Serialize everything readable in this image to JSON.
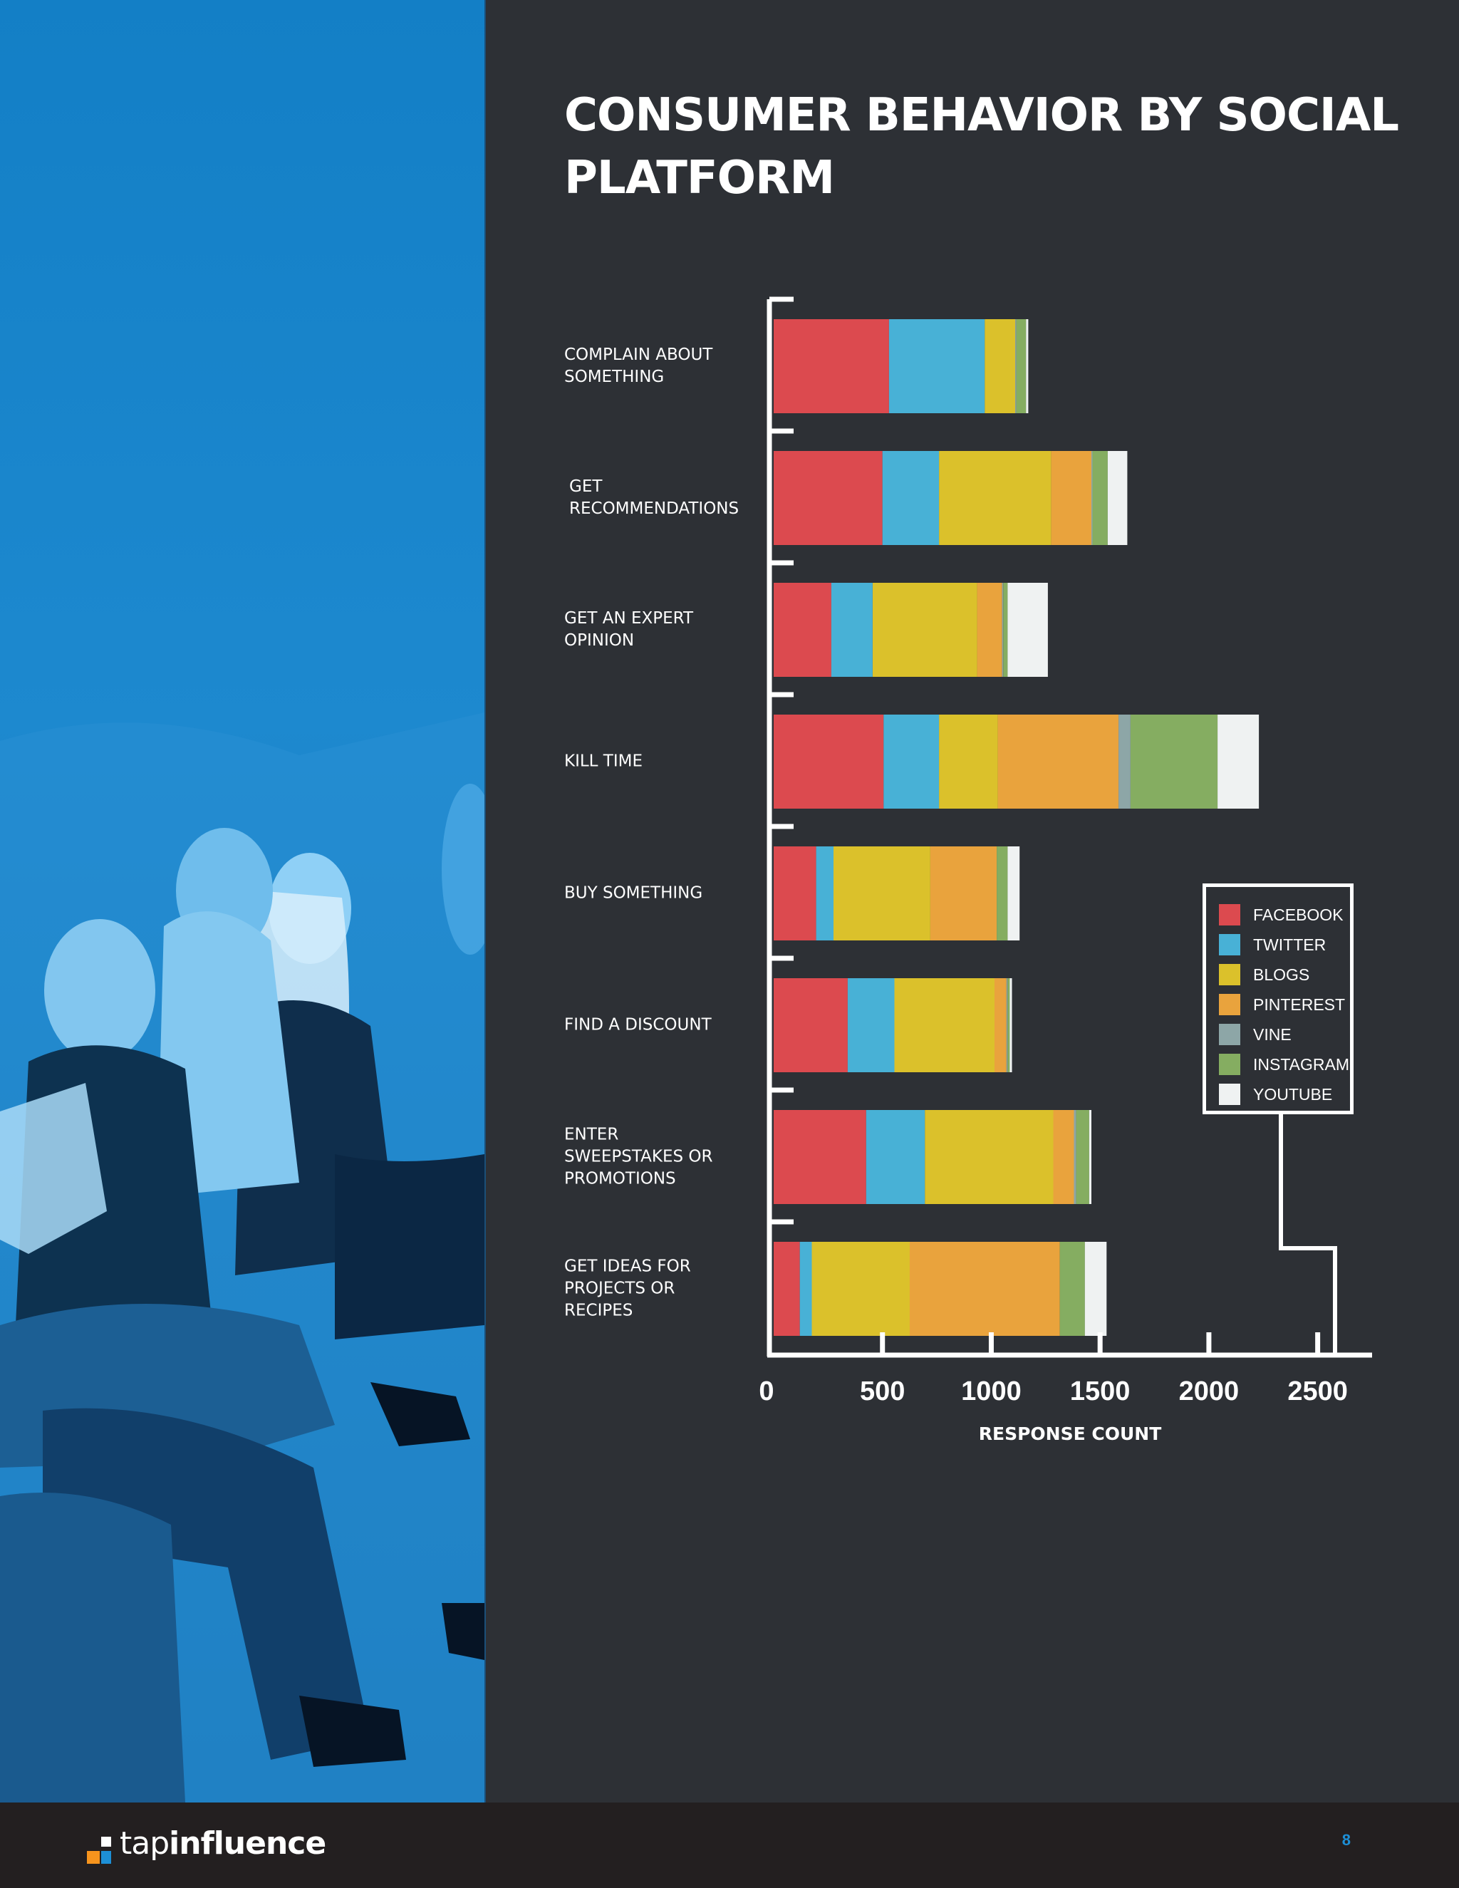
{
  "title": "CONSUMER BEHAVIOR BY SOCIAL PLATFORM",
  "brand": {
    "name_light": "tap",
    "name_bold": "influence"
  },
  "page_number": "8",
  "colors": {
    "panel_blue": "#1a85cc",
    "background": "#2d3035",
    "footer": "#231f20",
    "page_number": "#1d8fd6"
  },
  "chart_data": {
    "type": "bar",
    "orientation": "horizontal",
    "stacked": true,
    "title": "CONSUMER BEHAVIOR BY SOCIAL PLATFORM",
    "xlabel": "RESPONSE COUNT",
    "ylabel": "",
    "xlim": [
      0,
      2750
    ],
    "xticks": [
      "0",
      "500",
      "1000",
      "1500",
      "2000",
      "2500"
    ],
    "xtick_values": [
      0,
      500,
      1000,
      1500,
      2000,
      2500
    ],
    "legend_position": "right",
    "grid": false,
    "categories": [
      "COMPLAIN ABOUT\nSOMETHING",
      "GET\nRECOMMENDATIONS",
      "GET AN EXPERT\nOPINION",
      "KILL TIME",
      "BUY SOMETHING",
      "FIND A DISCOUNT",
      "ENTER\nSWEEPSTAKES OR\nPROMOTIONS",
      "GET IDEAS FOR\nPROJECTS OR\nRECIPES"
    ],
    "series": [
      {
        "name": "FACEBOOK",
        "color": "#dc4a4f",
        "values": [
          530,
          500,
          265,
          505,
          195,
          340,
          425,
          120
        ]
      },
      {
        "name": "TWITTER",
        "color": "#48b1d6",
        "values": [
          440,
          260,
          190,
          255,
          80,
          215,
          270,
          55
        ]
      },
      {
        "name": "BLOGS",
        "color": "#dbc12b",
        "values": [
          140,
          515,
          480,
          270,
          445,
          460,
          590,
          450
        ]
      },
      {
        "name": "PINTEREST",
        "color": "#e9a33d",
        "values": [
          0,
          185,
          115,
          555,
          305,
          55,
          95,
          690
        ]
      },
      {
        "name": "VINE",
        "color": "#8da6a7",
        "values": [
          5,
          5,
          5,
          55,
          0,
          5,
          10,
          0
        ]
      },
      {
        "name": "INSTAGRAM",
        "color": "#85ad61",
        "values": [
          45,
          70,
          20,
          400,
          50,
          10,
          60,
          115
        ]
      },
      {
        "name": "YOUTUBE",
        "color": "#eff2f2",
        "values": [
          10,
          90,
          185,
          190,
          55,
          10,
          10,
          100
        ]
      }
    ]
  }
}
